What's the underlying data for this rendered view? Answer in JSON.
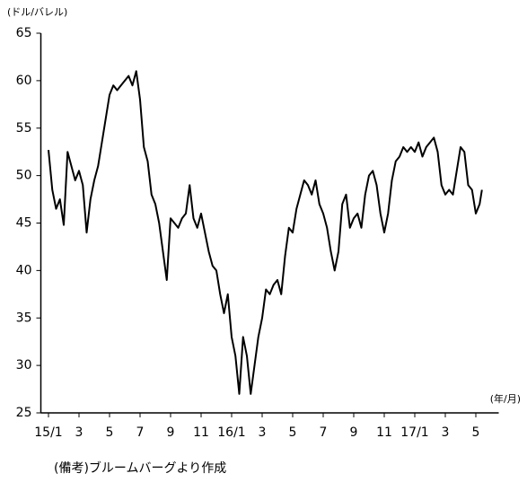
{
  "chart_data": {
    "type": "line",
    "ylabel": "(ドル/バレル)",
    "xlabel": "(年/月)",
    "note": "(備考)ブルームバーグより作成",
    "color": "#000000",
    "x": [
      0,
      0.25,
      0.5,
      0.75,
      1,
      1.25,
      1.5,
      1.75,
      2,
      2.25,
      2.5,
      2.75,
      3,
      3.25,
      3.5,
      3.75,
      4,
      4.25,
      4.5,
      4.75,
      5,
      5.25,
      5.5,
      5.75,
      6,
      6.25,
      6.5,
      6.75,
      7,
      7.25,
      7.5,
      7.75,
      8,
      8.25,
      8.5,
      8.75,
      9,
      9.25,
      9.5,
      9.75,
      10,
      10.25,
      10.5,
      10.75,
      11,
      11.25,
      11.5,
      11.75,
      12,
      12.25,
      12.5,
      12.75,
      13,
      13.25,
      13.5,
      13.75,
      14,
      14.25,
      14.5,
      14.75,
      15,
      15.25,
      15.5,
      15.75,
      16,
      16.25,
      16.5,
      16.75,
      17,
      17.25,
      17.5,
      17.75,
      18,
      18.25,
      18.5,
      18.75,
      19,
      19.25,
      19.5,
      19.75,
      20,
      20.25,
      20.5,
      20.75,
      21,
      21.25,
      21.5,
      21.75,
      22,
      22.25,
      22.5,
      22.75,
      23,
      23.25,
      23.5,
      23.75,
      24,
      24.25,
      24.5,
      24.75,
      25,
      25.25,
      25.5,
      25.75,
      26,
      26.25,
      26.5,
      26.75,
      27,
      27.25,
      27.5,
      27.75,
      28,
      28.25,
      28.4
    ],
    "values": [
      52.7,
      48.5,
      46.5,
      47.5,
      44.8,
      52.5,
      51,
      49.5,
      50.5,
      49,
      44,
      47.5,
      49.5,
      51,
      53.5,
      56,
      58.5,
      59.5,
      59,
      59.5,
      60,
      60.5,
      59.5,
      61,
      58,
      53,
      51.5,
      48,
      47,
      45,
      42,
      39,
      45.5,
      45,
      44.5,
      45.5,
      46,
      49,
      45.5,
      44.5,
      46,
      44,
      42,
      40.5,
      40,
      37.5,
      35.5,
      37.5,
      33,
      31,
      27,
      33,
      31,
      27,
      30,
      33,
      35,
      38,
      37.5,
      38.5,
      39,
      37.5,
      41.5,
      44.5,
      44,
      46.5,
      48,
      49.5,
      49,
      48,
      49.5,
      47,
      46,
      44.5,
      42,
      40,
      42,
      47,
      48,
      44.5,
      45.5,
      46,
      44.5,
      48,
      50,
      50.5,
      49,
      46,
      44,
      46,
      49.5,
      51.5,
      52,
      53,
      52.5,
      53,
      52.5,
      53.5,
      52,
      53,
      53.5,
      54,
      52.5,
      49,
      48,
      48.5,
      48,
      50.5,
      53,
      52.5,
      49,
      48.5,
      46,
      47,
      48.5
    ],
    "xlim": [
      -0.5,
      29.5
    ],
    "xticks": [
      {
        "value": 0,
        "label": "15/1"
      },
      {
        "value": 2,
        "label": "3"
      },
      {
        "value": 4,
        "label": "5"
      },
      {
        "value": 6,
        "label": "7"
      },
      {
        "value": 8,
        "label": "9"
      },
      {
        "value": 10,
        "label": "11"
      },
      {
        "value": 12,
        "label": "16/1"
      },
      {
        "value": 14,
        "label": "3"
      },
      {
        "value": 16,
        "label": "5"
      },
      {
        "value": 18,
        "label": "7"
      },
      {
        "value": 20,
        "label": "9"
      },
      {
        "value": 22,
        "label": "11"
      },
      {
        "value": 24,
        "label": "17/1"
      },
      {
        "value": 26,
        "label": "3"
      },
      {
        "value": 28,
        "label": "5"
      }
    ],
    "ylim": [
      25,
      65
    ],
    "yticks": [
      25,
      30,
      35,
      40,
      45,
      50,
      55,
      60,
      65
    ],
    "grid": false
  }
}
